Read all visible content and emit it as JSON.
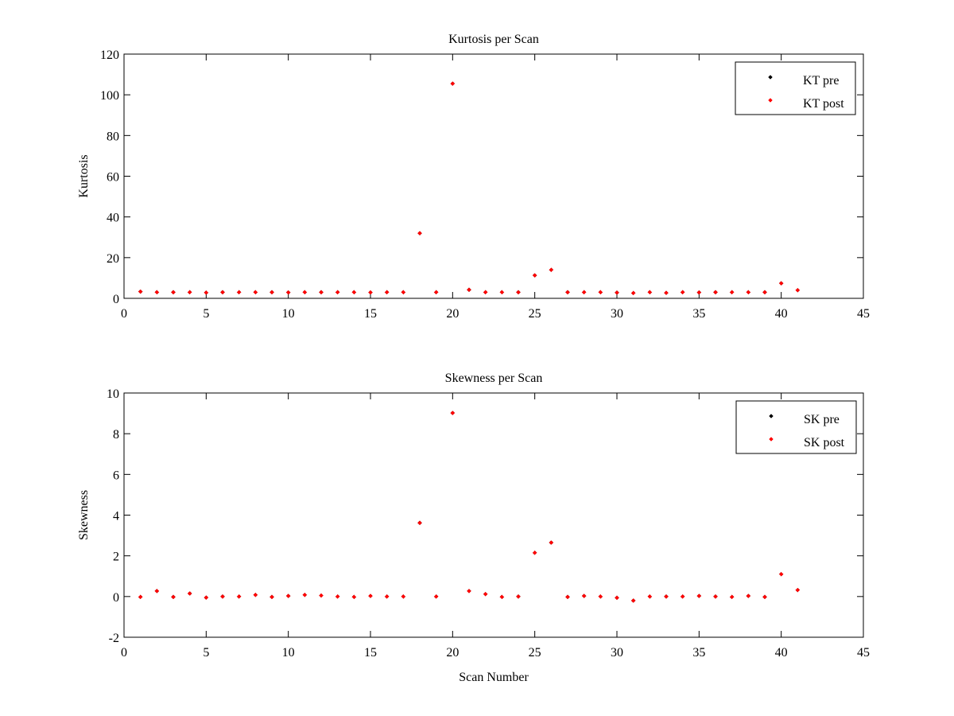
{
  "colors": {
    "pre": "#000000",
    "post": "#ff0000"
  },
  "chart_data": [
    {
      "type": "scatter",
      "title": "Kurtosis per Scan",
      "xlabel": "",
      "ylabel": "Kurtosis",
      "xlim": [
        0,
        45
      ],
      "ylim": [
        0,
        120
      ],
      "xticks": [
        "0",
        "5",
        "10",
        "15",
        "20",
        "25",
        "30",
        "35",
        "40",
        "45"
      ],
      "yticks": [
        "0",
        "20",
        "40",
        "60",
        "80",
        "100",
        "120"
      ],
      "legend_placement": "top-right",
      "legend": [
        "KT pre",
        "KT post"
      ],
      "x": [
        1,
        2,
        3,
        4,
        5,
        6,
        7,
        8,
        9,
        10,
        11,
        12,
        13,
        14,
        15,
        16,
        17,
        18,
        19,
        20,
        21,
        22,
        23,
        24,
        25,
        26,
        27,
        28,
        29,
        30,
        31,
        32,
        33,
        34,
        35,
        36,
        37,
        38,
        39,
        40,
        41
      ],
      "series": [
        {
          "name": "KT pre",
          "color": "#000000",
          "values": [
            3.3,
            3.0,
            3.0,
            3.0,
            2.8,
            3.0,
            3.0,
            3.0,
            3.0,
            2.9,
            3.0,
            3.0,
            3.0,
            3.0,
            2.9,
            3.0,
            3.0,
            32.0,
            3.0,
            105.5,
            4.2,
            3.0,
            3.0,
            3.0,
            11.3,
            14.0,
            3.0,
            3.0,
            3.0,
            2.8,
            2.6,
            3.0,
            2.7,
            3.0,
            2.9,
            3.0,
            3.0,
            3.0,
            3.0,
            7.4,
            4.0
          ]
        },
        {
          "name": "KT post",
          "color": "#ff0000",
          "values": [
            3.3,
            3.0,
            3.0,
            3.0,
            2.8,
            3.0,
            3.0,
            3.0,
            3.0,
            2.9,
            3.0,
            3.0,
            3.0,
            3.0,
            2.9,
            3.0,
            3.0,
            32.0,
            3.0,
            105.5,
            4.2,
            3.0,
            3.0,
            3.0,
            11.3,
            14.0,
            3.0,
            3.0,
            3.0,
            2.8,
            2.6,
            3.0,
            2.7,
            3.0,
            2.9,
            3.0,
            3.0,
            3.0,
            3.0,
            7.4,
            4.0
          ]
        }
      ]
    },
    {
      "type": "scatter",
      "title": "Skewness per Scan",
      "xlabel": "Scan Number",
      "ylabel": "Skewness",
      "xlim": [
        0,
        45
      ],
      "ylim": [
        -2,
        10
      ],
      "xticks": [
        "0",
        "5",
        "10",
        "15",
        "20",
        "25",
        "30",
        "35",
        "40",
        "45"
      ],
      "yticks": [
        "-2",
        "0",
        "2",
        "4",
        "6",
        "8",
        "10"
      ],
      "legend_placement": "top-right",
      "legend": [
        "SK pre",
        "SK post"
      ],
      "x": [
        1,
        2,
        3,
        4,
        5,
        6,
        7,
        8,
        9,
        10,
        11,
        12,
        13,
        14,
        15,
        16,
        17,
        18,
        19,
        20,
        21,
        22,
        23,
        24,
        25,
        26,
        27,
        28,
        29,
        30,
        31,
        32,
        33,
        34,
        35,
        36,
        37,
        38,
        39,
        40,
        41
      ],
      "series": [
        {
          "name": "SK pre",
          "color": "#000000",
          "values": [
            -0.02,
            0.27,
            -0.02,
            0.15,
            -0.05,
            0.0,
            0.0,
            0.08,
            -0.02,
            0.03,
            0.08,
            0.05,
            0.0,
            -0.02,
            0.03,
            0.0,
            0.0,
            3.62,
            0.0,
            9.02,
            0.27,
            0.12,
            -0.02,
            0.0,
            2.15,
            2.65,
            -0.02,
            0.03,
            0.0,
            -0.06,
            -0.2,
            0.0,
            0.0,
            0.0,
            0.03,
            0.0,
            -0.02,
            0.03,
            -0.02,
            1.1,
            0.32
          ]
        },
        {
          "name": "SK post",
          "color": "#ff0000",
          "values": [
            -0.02,
            0.27,
            -0.02,
            0.15,
            -0.05,
            0.0,
            0.0,
            0.08,
            -0.02,
            0.03,
            0.08,
            0.05,
            0.0,
            -0.02,
            0.03,
            0.0,
            0.0,
            3.62,
            0.0,
            9.02,
            0.27,
            0.12,
            -0.02,
            0.0,
            2.15,
            2.65,
            -0.02,
            0.03,
            0.0,
            -0.06,
            -0.2,
            0.0,
            0.0,
            0.0,
            0.03,
            0.0,
            -0.02,
            0.03,
            -0.02,
            1.1,
            0.32
          ]
        }
      ]
    }
  ]
}
